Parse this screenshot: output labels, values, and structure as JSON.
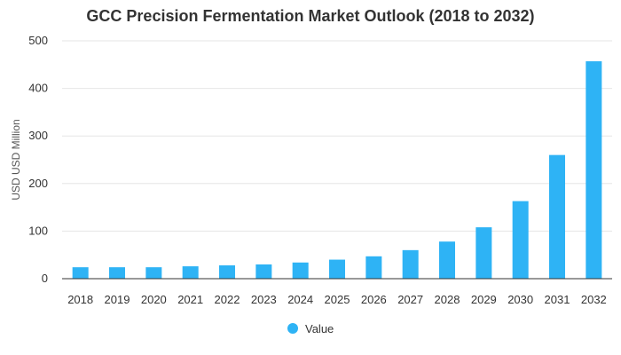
{
  "chart_data": {
    "type": "bar",
    "title": "GCC Precision Fermentation Market Outlook (2018 to 2032)",
    "xlabel": "",
    "ylabel": "USD USD Million",
    "categories": [
      "2018",
      "2019",
      "2020",
      "2021",
      "2022",
      "2023",
      "2024",
      "2025",
      "2026",
      "2027",
      "2028",
      "2029",
      "2030",
      "2031",
      "2032"
    ],
    "series": [
      {
        "name": "Value",
        "values": [
          24,
          24,
          24,
          26,
          28,
          30,
          34,
          40,
          47,
          60,
          78,
          108,
          163,
          260,
          457
        ]
      }
    ],
    "ylim": [
      0,
      500
    ],
    "yticks": [
      0,
      100,
      200,
      300,
      400,
      500
    ],
    "grid": true,
    "legend_position": "bottom",
    "colors": {
      "bar": "#2eb3f5",
      "grid": "#e6e6e6",
      "axis": "#333333"
    }
  }
}
